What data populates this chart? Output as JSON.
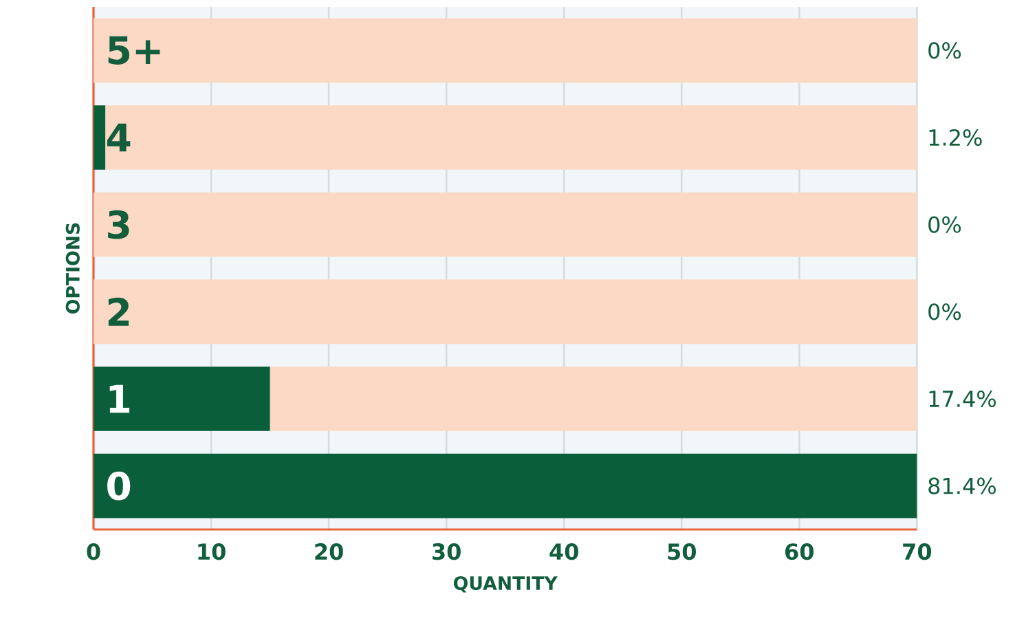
{
  "chart_data": {
    "type": "bar",
    "orientation": "horizontal",
    "stacked": true,
    "xlabel": "QUANTITY",
    "ylabel": "OPTIONS",
    "categories": [
      "5+",
      "4",
      "3",
      "2",
      "1",
      "0"
    ],
    "series": [
      {
        "color": "#0b5e3a",
        "values": [
          0,
          1,
          0,
          0,
          15,
          70
        ]
      },
      {
        "color": "#fcd9c4",
        "values": [
          70,
          69,
          70,
          70,
          55,
          0
        ]
      }
    ],
    "annotations": [
      "0%",
      "1.2%",
      "0%",
      "0%",
      "17.4%",
      "81.4%"
    ],
    "xlim": [
      0,
      70
    ],
    "xticks": [
      0,
      10,
      20,
      30,
      40,
      50,
      60,
      70
    ],
    "grid": "x"
  }
}
